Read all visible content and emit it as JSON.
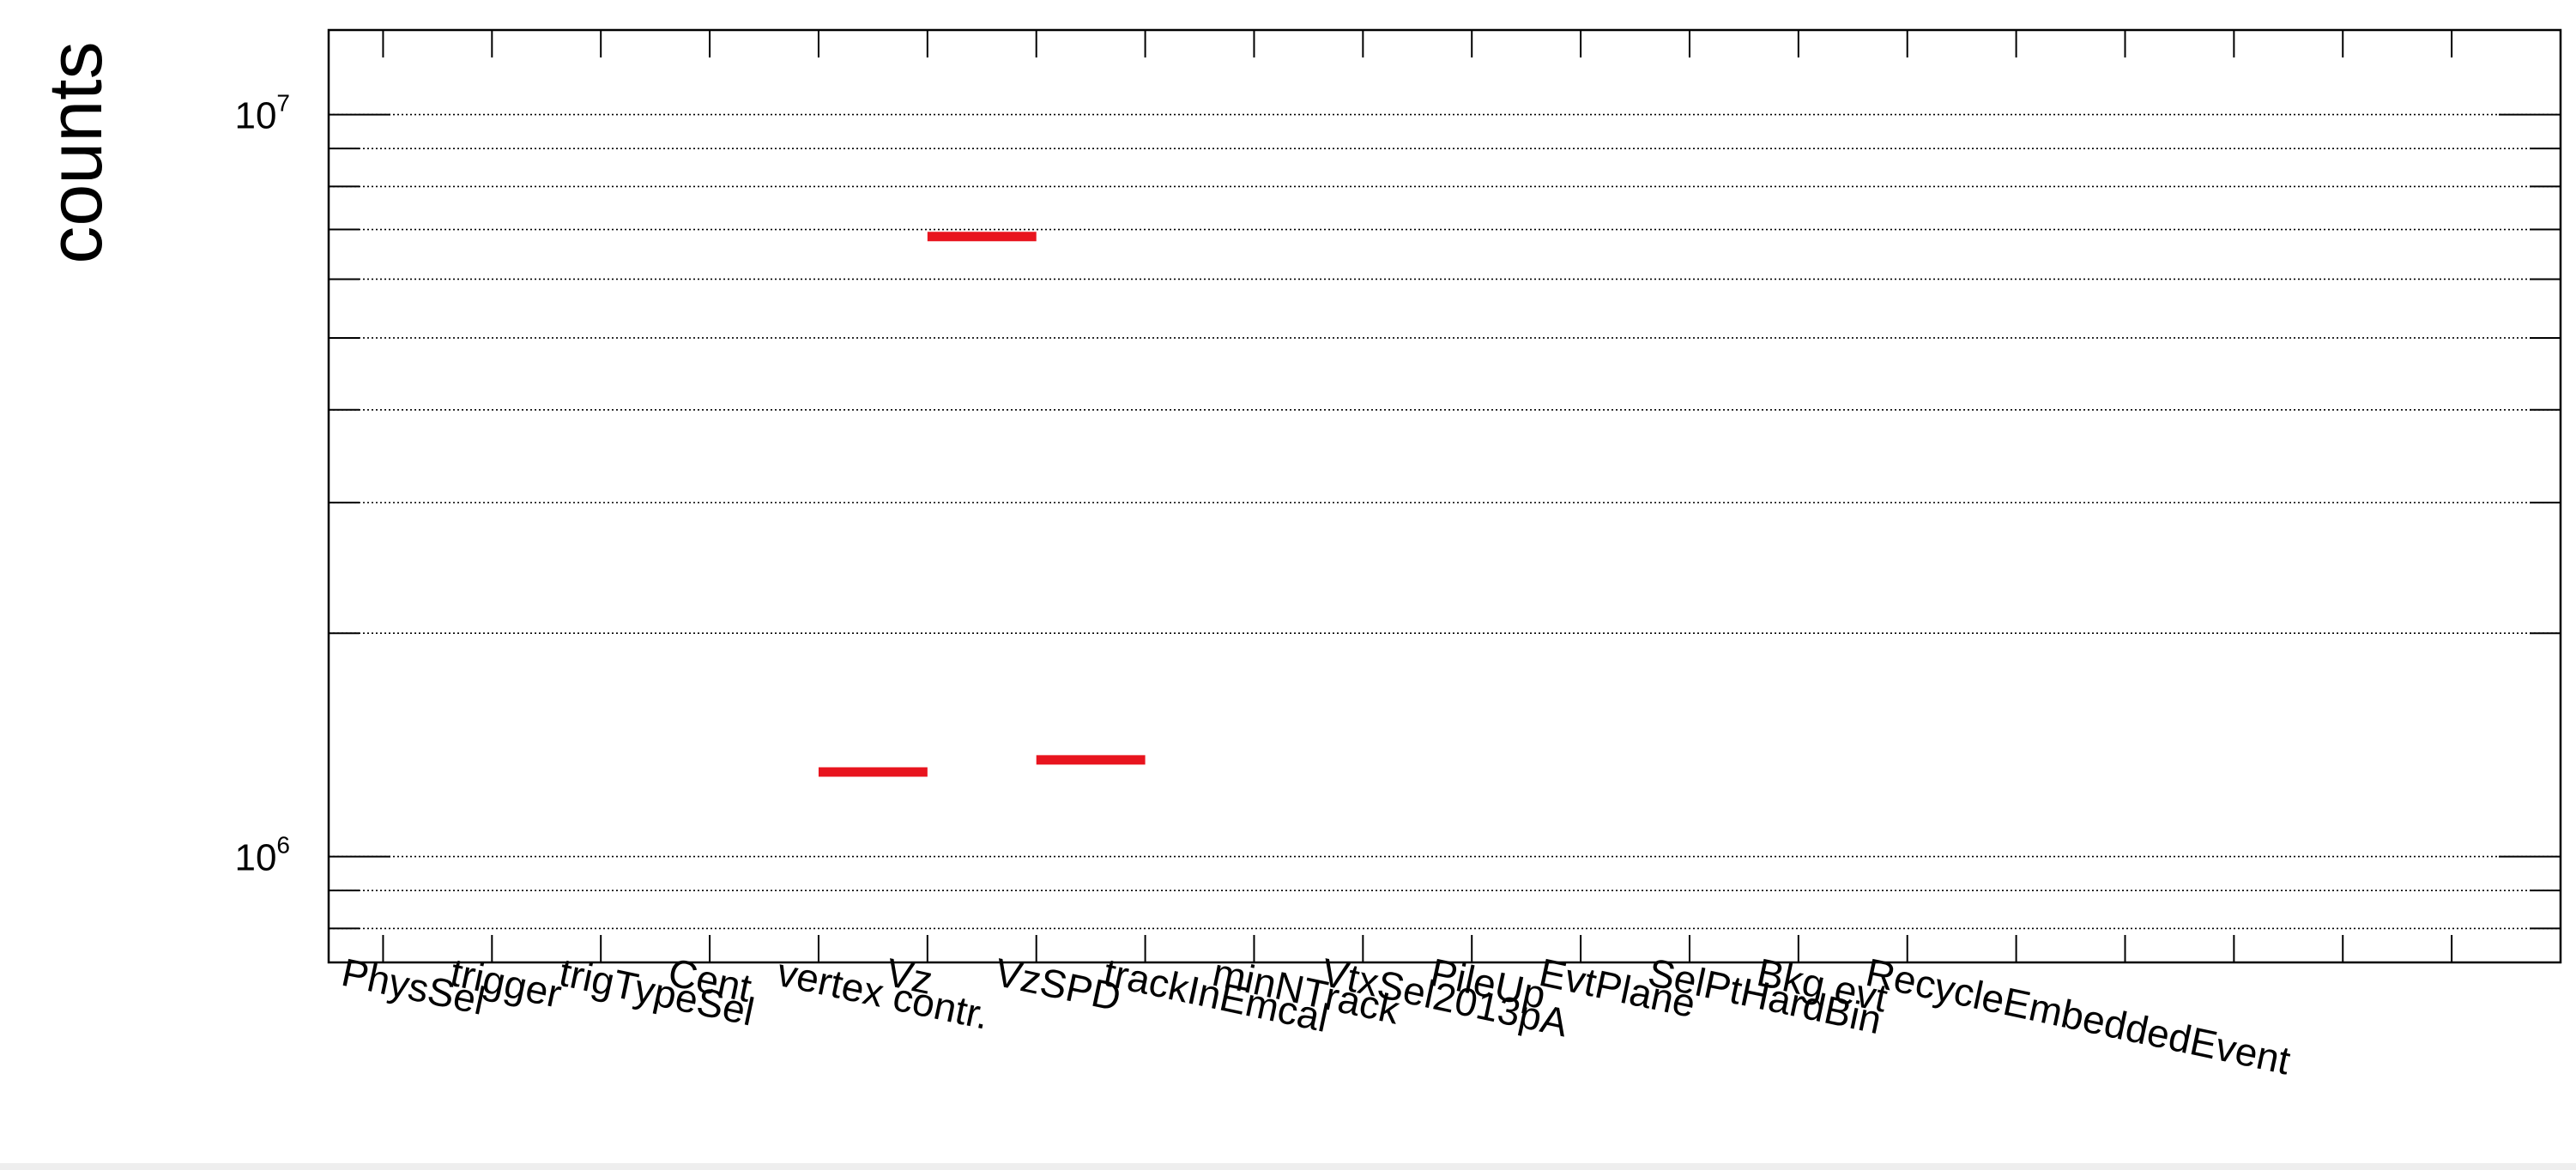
{
  "chart_data": {
    "type": "bar",
    "title": "",
    "xlabel": "",
    "ylabel": "counts",
    "y_scale": "log",
    "ylim": [
      720000,
      13000000
    ],
    "grid": {
      "x": false,
      "y": true
    },
    "y_ticks": [
      {
        "value": 1000000,
        "base": "10",
        "exp": "6"
      },
      {
        "value": 10000000,
        "base": "10",
        "exp": "7"
      }
    ],
    "categories": [
      "PhysSel",
      "trigger",
      "trigTypeSel",
      "Cent",
      "vertex contr.",
      "Vz",
      "VzSPD",
      "trackInEmcal",
      "minNTrack",
      "VtxSel2013pA",
      "PileUp",
      "EvtPlane",
      "SelPtHardBin",
      "Bkg evt",
      "RecycleEmbeddedEvent",
      "",
      "",
      "",
      "",
      ""
    ],
    "values": [
      null,
      null,
      null,
      null,
      1300000,
      6850000,
      1350000,
      null,
      null,
      null,
      null,
      null,
      null,
      null,
      null,
      null,
      null,
      null,
      null,
      null
    ],
    "colors": {
      "marker": "#e8141e",
      "grid": "#000000",
      "axis": "#000000"
    }
  }
}
